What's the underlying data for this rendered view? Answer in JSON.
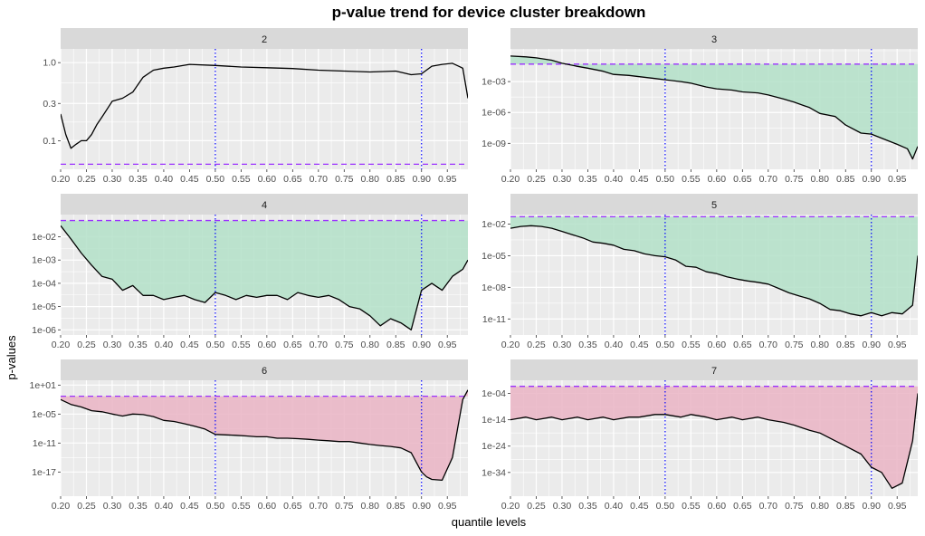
{
  "figure": {
    "title": "p-value trend for device cluster breakdown",
    "xlabel": "quantile levels",
    "ylabel": "p-values"
  },
  "style": {
    "panel_bg": "#ebebeb",
    "grid_color": "#ffffff",
    "strip_bg": "#d9d9d9",
    "line_color": "#000000",
    "threshold_color": "#9b30ff",
    "vline_color": "#0000ff",
    "fill_significant": "#b3e0c8",
    "fill_cluster_6_7": "#eab4c4"
  },
  "chart_data": [
    {
      "type": "line",
      "panel": "2",
      "y_scale": "log10",
      "threshold": 0.05,
      "fill": "none",
      "vlines": [
        0.5,
        0.9
      ],
      "xlim": [
        0.2,
        0.99
      ],
      "ylim": [
        0.043,
        1.5
      ],
      "x_ticks": [
        "0.20",
        "0.25",
        "0.30",
        "0.35",
        "0.40",
        "0.45",
        "0.50",
        "0.55",
        "0.60",
        "0.65",
        "0.70",
        "0.75",
        "0.80",
        "0.85",
        "0.90",
        "0.95"
      ],
      "y_ticks": [
        {
          "label": "0.1",
          "value": 0.1
        },
        {
          "label": "0.3",
          "value": 0.3
        },
        {
          "label": "1.0",
          "value": 1.0
        }
      ],
      "x": [
        0.2,
        0.21,
        0.22,
        0.23,
        0.24,
        0.25,
        0.26,
        0.27,
        0.28,
        0.3,
        0.32,
        0.34,
        0.36,
        0.38,
        0.4,
        0.42,
        0.45,
        0.5,
        0.55,
        0.6,
        0.65,
        0.7,
        0.75,
        0.8,
        0.85,
        0.88,
        0.9,
        0.92,
        0.94,
        0.96,
        0.98,
        0.99
      ],
      "y": [
        0.22,
        0.12,
        0.08,
        0.09,
        0.1,
        0.1,
        0.12,
        0.16,
        0.2,
        0.32,
        0.35,
        0.42,
        0.65,
        0.8,
        0.85,
        0.88,
        0.95,
        0.92,
        0.88,
        0.86,
        0.84,
        0.8,
        0.78,
        0.76,
        0.78,
        0.7,
        0.72,
        0.9,
        0.95,
        0.98,
        0.85,
        0.35
      ]
    },
    {
      "type": "area",
      "panel": "3",
      "y_scale": "log10",
      "threshold": 0.05,
      "fill": "significant",
      "vlines": [
        0.5,
        0.9
      ],
      "xlim": [
        0.2,
        0.99
      ],
      "ylim": [
        3e-12,
        1.5
      ],
      "x_ticks": [
        "0.20",
        "0.25",
        "0.30",
        "0.35",
        "0.40",
        "0.45",
        "0.50",
        "0.55",
        "0.60",
        "0.65",
        "0.70",
        "0.75",
        "0.80",
        "0.85",
        "0.90",
        "0.95"
      ],
      "y_ticks": [
        {
          "label": "1e-09",
          "value": 1e-09
        },
        {
          "label": "1e-06",
          "value": 1e-06
        },
        {
          "label": "1e-03",
          "value": 0.001
        }
      ],
      "x": [
        0.2,
        0.23,
        0.25,
        0.28,
        0.3,
        0.33,
        0.35,
        0.38,
        0.4,
        0.43,
        0.45,
        0.48,
        0.5,
        0.53,
        0.55,
        0.58,
        0.6,
        0.63,
        0.65,
        0.68,
        0.7,
        0.73,
        0.75,
        0.78,
        0.8,
        0.83,
        0.85,
        0.88,
        0.9,
        0.93,
        0.95,
        0.97,
        0.98,
        0.99
      ],
      "y": [
        0.3,
        0.25,
        0.2,
        0.12,
        0.06,
        0.03,
        0.02,
        0.01,
        0.005,
        0.004,
        0.003,
        0.002,
        0.0015,
        0.001,
        0.0007,
        0.0003,
        0.0002,
        0.00015,
        0.0001,
        8e-05,
        5e-05,
        2e-05,
        1e-05,
        3e-06,
        8e-07,
        4e-07,
        6e-08,
        1e-08,
        8e-09,
        2e-09,
        8e-10,
        3e-10,
        3e-11,
        5e-10
      ]
    },
    {
      "type": "area",
      "panel": "4",
      "y_scale": "log10",
      "threshold": 0.05,
      "fill": "significant",
      "vlines": [
        0.5,
        0.9
      ],
      "xlim": [
        0.2,
        0.99
      ],
      "ylim": [
        6e-07,
        0.09
      ],
      "x_ticks": [
        "0.20",
        "0.25",
        "0.30",
        "0.35",
        "0.40",
        "0.45",
        "0.50",
        "0.55",
        "0.60",
        "0.65",
        "0.70",
        "0.75",
        "0.80",
        "0.85",
        "0.90",
        "0.95"
      ],
      "y_ticks": [
        {
          "label": "1e-06",
          "value": 1e-06
        },
        {
          "label": "1e-05",
          "value": 1e-05
        },
        {
          "label": "1e-04",
          "value": 0.0001
        },
        {
          "label": "1e-03",
          "value": 0.001
        },
        {
          "label": "1e-02",
          "value": 0.01
        }
      ],
      "x": [
        0.2,
        0.22,
        0.24,
        0.26,
        0.28,
        0.3,
        0.32,
        0.34,
        0.36,
        0.38,
        0.4,
        0.42,
        0.44,
        0.46,
        0.48,
        0.5,
        0.52,
        0.54,
        0.56,
        0.58,
        0.6,
        0.62,
        0.64,
        0.66,
        0.68,
        0.7,
        0.72,
        0.74,
        0.76,
        0.78,
        0.8,
        0.82,
        0.84,
        0.86,
        0.88,
        0.9,
        0.92,
        0.94,
        0.96,
        0.98,
        0.99
      ],
      "y": [
        0.03,
        0.008,
        0.002,
        0.0006,
        0.0002,
        0.00015,
        5e-05,
        8e-05,
        3e-05,
        3e-05,
        2e-05,
        2.5e-05,
        3e-05,
        2e-05,
        1.5e-05,
        4e-05,
        3e-05,
        2e-05,
        3e-05,
        2.5e-05,
        3e-05,
        3e-05,
        2e-05,
        4e-05,
        3e-05,
        2.5e-05,
        3e-05,
        2e-05,
        1e-05,
        8e-06,
        4e-06,
        1.5e-06,
        3e-06,
        2e-06,
        1e-06,
        5e-05,
        0.0001,
        5e-05,
        0.0002,
        0.0004,
        0.001
      ]
    },
    {
      "type": "area",
      "panel": "5",
      "y_scale": "log10",
      "threshold": 0.05,
      "fill": "significant",
      "vlines": [
        0.5,
        0.9
      ],
      "xlim": [
        0.2,
        0.99
      ],
      "ylim": [
        3e-13,
        0.08
      ],
      "x_ticks": [
        "0.20",
        "0.25",
        "0.30",
        "0.35",
        "0.40",
        "0.45",
        "0.50",
        "0.55",
        "0.60",
        "0.65",
        "0.70",
        "0.75",
        "0.80",
        "0.85",
        "0.90",
        "0.95"
      ],
      "y_ticks": [
        {
          "label": "1e-11",
          "value": 1e-11
        },
        {
          "label": "1e-08",
          "value": 1e-08
        },
        {
          "label": "1e-05",
          "value": 1e-05
        },
        {
          "label": "1e-02",
          "value": 0.01
        }
      ],
      "x": [
        0.2,
        0.22,
        0.24,
        0.26,
        0.28,
        0.3,
        0.32,
        0.34,
        0.36,
        0.38,
        0.4,
        0.42,
        0.44,
        0.46,
        0.48,
        0.5,
        0.52,
        0.54,
        0.56,
        0.58,
        0.6,
        0.62,
        0.64,
        0.66,
        0.68,
        0.7,
        0.72,
        0.74,
        0.76,
        0.78,
        0.8,
        0.82,
        0.84,
        0.86,
        0.88,
        0.9,
        0.92,
        0.94,
        0.96,
        0.98,
        0.99
      ],
      "y": [
        0.004,
        0.006,
        0.007,
        0.006,
        0.004,
        0.002,
        0.001,
        0.0005,
        0.0002,
        0.00015,
        0.0001,
        4e-05,
        3e-05,
        1.5e-05,
        1e-05,
        8e-06,
        4e-06,
        1e-06,
        8e-07,
        3e-07,
        2e-07,
        1e-07,
        6e-08,
        4e-08,
        3e-08,
        2e-08,
        8e-09,
        3e-09,
        1.5e-09,
        8e-10,
        3e-10,
        8e-11,
        6e-11,
        3e-11,
        2e-11,
        4e-11,
        2e-11,
        4e-11,
        3e-11,
        2e-10,
        1e-05
      ]
    },
    {
      "type": "area",
      "panel": "6",
      "y_scale": "log10",
      "threshold": 0.05,
      "fill": "cluster_6_7",
      "vlines": [
        0.5,
        0.9
      ],
      "xlim": [
        0.2,
        0.99
      ],
      "ylim": [
        1e-22,
        100
      ],
      "x_ticks": [
        "0.20",
        "0.25",
        "0.30",
        "0.35",
        "0.40",
        "0.45",
        "0.50",
        "0.55",
        "0.60",
        "0.65",
        "0.70",
        "0.75",
        "0.80",
        "0.85",
        "0.90",
        "0.95"
      ],
      "y_ticks": [
        {
          "label": "1e-17",
          "value": 1e-17
        },
        {
          "label": "1e-11",
          "value": 1e-11
        },
        {
          "label": "1e-05",
          "value": 1e-05
        },
        {
          "label": "1e+01",
          "value": 10
        }
      ],
      "x": [
        0.2,
        0.22,
        0.24,
        0.26,
        0.28,
        0.3,
        0.32,
        0.34,
        0.36,
        0.38,
        0.4,
        0.42,
        0.44,
        0.46,
        0.48,
        0.5,
        0.52,
        0.54,
        0.56,
        0.58,
        0.6,
        0.62,
        0.64,
        0.66,
        0.68,
        0.7,
        0.72,
        0.74,
        0.76,
        0.78,
        0.8,
        0.82,
        0.84,
        0.86,
        0.88,
        0.9,
        0.91,
        0.92,
        0.94,
        0.96,
        0.98,
        0.99
      ],
      "y": [
        0.01,
        0.001,
        0.0003,
        5e-05,
        3e-05,
        1e-05,
        4e-06,
        1e-05,
        8e-06,
        3e-06,
        5e-07,
        3e-07,
        1e-07,
        3e-08,
        8e-09,
        6e-10,
        5e-10,
        4e-10,
        3e-10,
        2e-10,
        2e-10,
        1e-10,
        1e-10,
        8e-11,
        6e-11,
        4e-11,
        3e-11,
        2e-11,
        2e-11,
        1e-11,
        5e-12,
        3e-12,
        2e-12,
        1e-12,
        1e-13,
        1e-17,
        1e-18,
        3e-19,
        2e-19,
        1e-14,
        0.01,
        1.0
      ]
    },
    {
      "type": "area",
      "panel": "7",
      "y_scale": "log10",
      "threshold": 0.05,
      "fill": "cluster_6_7",
      "vlines": [
        0.5,
        0.9
      ],
      "xlim": [
        0.2,
        0.99
      ],
      "ylim": [
        1e-43,
        10.0
      ],
      "x_ticks": [
        "0.20",
        "0.25",
        "0.30",
        "0.35",
        "0.40",
        "0.45",
        "0.50",
        "0.55",
        "0.60",
        "0.65",
        "0.70",
        "0.75",
        "0.80",
        "0.85",
        "0.90",
        "0.95"
      ],
      "y_ticks": [
        {
          "label": "1e-34",
          "value": 1e-34
        },
        {
          "label": "1e-24",
          "value": 1e-24
        },
        {
          "label": "1e-14",
          "value": 1e-14
        },
        {
          "label": "1e-04",
          "value": 0.0001
        }
      ],
      "x": [
        0.2,
        0.23,
        0.25,
        0.28,
        0.3,
        0.33,
        0.35,
        0.38,
        0.4,
        0.43,
        0.45,
        0.48,
        0.5,
        0.53,
        0.55,
        0.58,
        0.6,
        0.63,
        0.65,
        0.68,
        0.7,
        0.73,
        0.75,
        0.78,
        0.8,
        0.83,
        0.85,
        0.88,
        0.9,
        0.92,
        0.94,
        0.96,
        0.98,
        0.99
      ],
      "y": [
        1e-14,
        1e-13,
        1e-14,
        1e-13,
        1e-14,
        1e-13,
        1e-14,
        1e-13,
        1e-14,
        1e-13,
        1e-13,
        1e-12,
        1e-12,
        1e-13,
        1e-12,
        1e-13,
        1e-14,
        1e-13,
        1e-14,
        1e-13,
        1e-14,
        1e-15,
        1e-16,
        1e-18,
        1e-19,
        1e-22,
        1e-24,
        1e-27,
        1e-32,
        1e-34,
        1e-40,
        1e-38,
        1e-22,
        0.0001
      ]
    }
  ]
}
